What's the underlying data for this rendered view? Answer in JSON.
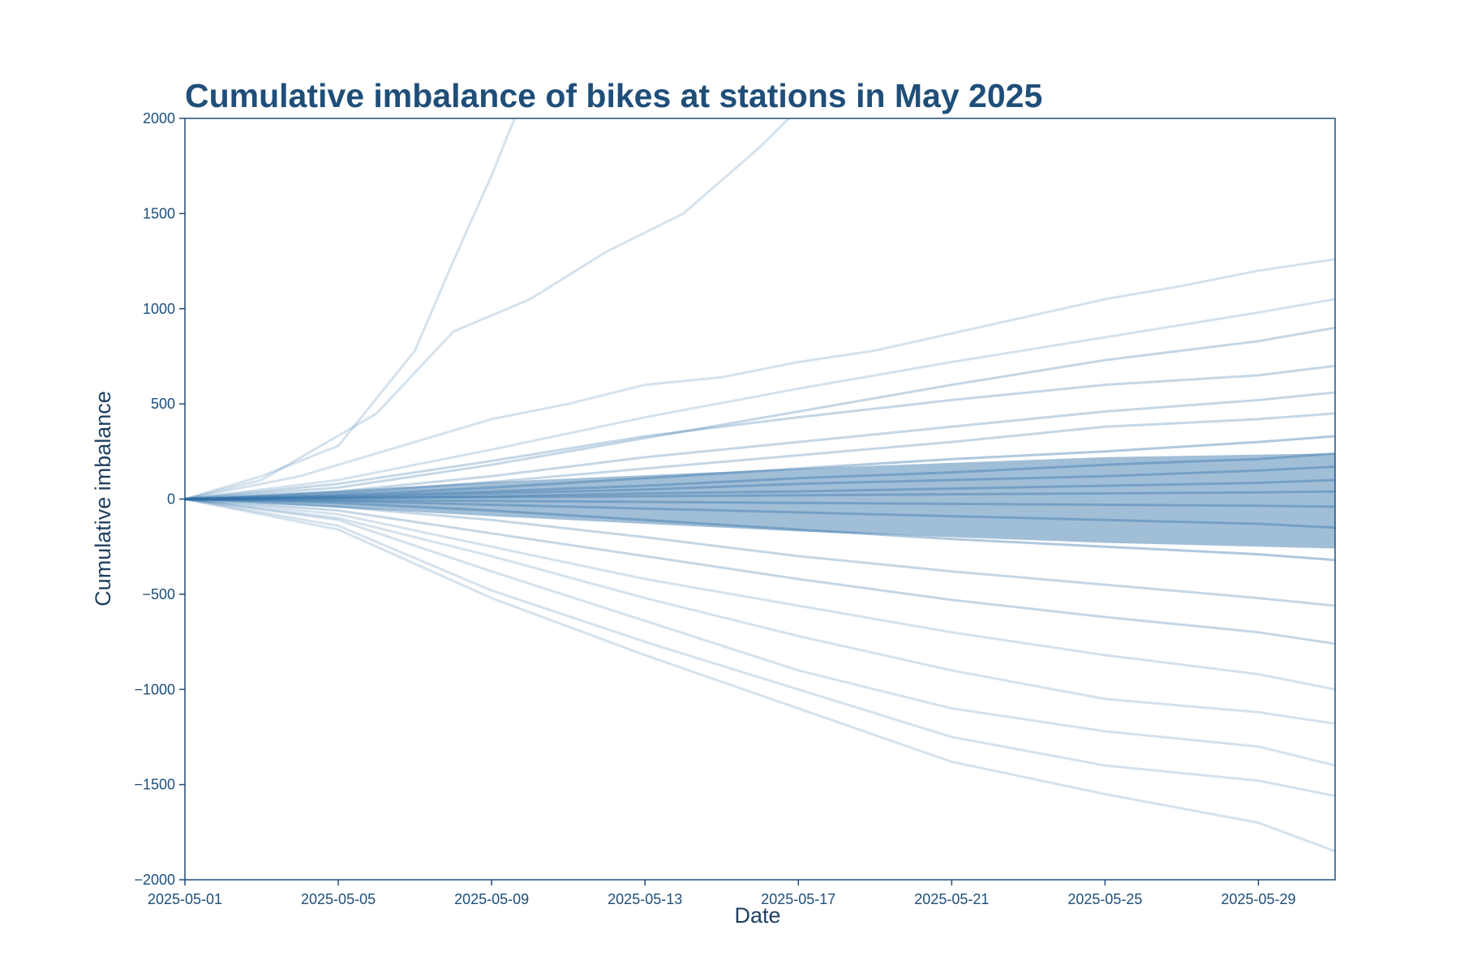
{
  "chart_data": {
    "type": "line",
    "title": "Cumulative imbalance of bikes at stations in May 2025",
    "xlabel": "Date",
    "ylabel": "Cumulative imbalance",
    "x_range": [
      "2025-05-01",
      "2025-05-31"
    ],
    "x_ticks": [
      "2025-05-01",
      "2025-05-05",
      "2025-05-09",
      "2025-05-13",
      "2025-05-17",
      "2025-05-21",
      "2025-05-25",
      "2025-05-29"
    ],
    "ylim": [
      -2000,
      2000
    ],
    "y_ticks": [
      -2000,
      -1500,
      -1000,
      -500,
      0,
      500,
      1000,
      1500,
      2000
    ],
    "y_tick_labels": [
      "−2000",
      "−1500",
      "−1000",
      "−500",
      "0",
      "500",
      "1000",
      "1500",
      "2000"
    ],
    "grid": false,
    "legend": "none",
    "colors": {
      "series": "#2f6ea6",
      "axes": "#1f4e79",
      "title": "#1f4e79"
    },
    "series": [
      {
        "x": [
          "2025-05-01",
          "2025-05-03",
          "2025-05-05",
          "2025-05-07",
          "2025-05-08",
          "2025-05-09",
          "2025-05-10"
        ],
        "values": [
          0,
          120,
          280,
          780,
          1250,
          1700,
          2200
        ]
      },
      {
        "x": [
          "2025-05-01",
          "2025-05-03",
          "2025-05-06",
          "2025-05-08",
          "2025-05-10",
          "2025-05-12",
          "2025-05-14",
          "2025-05-16",
          "2025-05-17"
        ],
        "values": [
          0,
          100,
          450,
          880,
          1050,
          1300,
          1500,
          1850,
          2050
        ]
      },
      {
        "x": [
          "2025-05-01",
          "2025-05-04",
          "2025-05-07",
          "2025-05-09",
          "2025-05-11",
          "2025-05-13",
          "2025-05-15",
          "2025-05-17",
          "2025-05-19",
          "2025-05-21",
          "2025-05-23",
          "2025-05-25",
          "2025-05-27",
          "2025-05-29",
          "2025-05-31"
        ],
        "values": [
          0,
          120,
          300,
          420,
          500,
          600,
          640,
          720,
          780,
          870,
          960,
          1050,
          1120,
          1200,
          1260
        ]
      },
      {
        "x": [
          "2025-05-01",
          "2025-05-05",
          "2025-05-09",
          "2025-05-13",
          "2025-05-17",
          "2025-05-21",
          "2025-05-25",
          "2025-05-29",
          "2025-05-31"
        ],
        "values": [
          0,
          100,
          260,
          430,
          580,
          720,
          850,
          980,
          1050
        ]
      },
      {
        "x": [
          "2025-05-01",
          "2025-05-05",
          "2025-05-09",
          "2025-05-13",
          "2025-05-17",
          "2025-05-21",
          "2025-05-25",
          "2025-05-29",
          "2025-05-31"
        ],
        "values": [
          0,
          60,
          180,
          320,
          460,
          600,
          730,
          830,
          900
        ]
      },
      {
        "x": [
          "2025-05-01",
          "2025-05-05",
          "2025-05-09",
          "2025-05-13",
          "2025-05-17",
          "2025-05-21",
          "2025-05-25",
          "2025-05-29",
          "2025-05-31"
        ],
        "values": [
          0,
          80,
          200,
          330,
          430,
          520,
          600,
          650,
          700
        ]
      },
      {
        "x": [
          "2025-05-01",
          "2025-05-05",
          "2025-05-09",
          "2025-05-13",
          "2025-05-17",
          "2025-05-21",
          "2025-05-25",
          "2025-05-29",
          "2025-05-31"
        ],
        "values": [
          0,
          40,
          120,
          220,
          300,
          380,
          460,
          520,
          560
        ]
      },
      {
        "x": [
          "2025-05-01",
          "2025-05-05",
          "2025-05-09",
          "2025-05-13",
          "2025-05-17",
          "2025-05-21",
          "2025-05-25",
          "2025-05-29",
          "2025-05-31"
        ],
        "values": [
          0,
          30,
          90,
          160,
          230,
          300,
          380,
          420,
          450
        ]
      },
      {
        "x": [
          "2025-05-01",
          "2025-05-05",
          "2025-05-09",
          "2025-05-13",
          "2025-05-17",
          "2025-05-21",
          "2025-05-25",
          "2025-05-29",
          "2025-05-31"
        ],
        "values": [
          0,
          20,
          60,
          110,
          160,
          210,
          250,
          300,
          330
        ]
      },
      {
        "x": [
          "2025-05-01",
          "2025-05-05",
          "2025-05-09",
          "2025-05-13",
          "2025-05-17",
          "2025-05-21",
          "2025-05-25",
          "2025-05-29",
          "2025-05-31"
        ],
        "values": [
          0,
          15,
          40,
          70,
          110,
          140,
          180,
          210,
          240
        ]
      },
      {
        "x": [
          "2025-05-01",
          "2025-05-05",
          "2025-05-09",
          "2025-05-13",
          "2025-05-17",
          "2025-05-21",
          "2025-05-25",
          "2025-05-29",
          "2025-05-31"
        ],
        "values": [
          0,
          10,
          30,
          50,
          80,
          100,
          120,
          150,
          170
        ]
      },
      {
        "x": [
          "2025-05-01",
          "2025-05-05",
          "2025-05-09",
          "2025-05-13",
          "2025-05-17",
          "2025-05-21",
          "2025-05-25",
          "2025-05-29",
          "2025-05-31"
        ],
        "values": [
          0,
          5,
          15,
          30,
          40,
          55,
          70,
          85,
          100
        ]
      },
      {
        "x": [
          "2025-05-01",
          "2025-05-05",
          "2025-05-09",
          "2025-05-13",
          "2025-05-17",
          "2025-05-21",
          "2025-05-25",
          "2025-05-29",
          "2025-05-31"
        ],
        "values": [
          0,
          5,
          10,
          15,
          20,
          25,
          30,
          35,
          40
        ]
      },
      {
        "x": [
          "2025-05-01",
          "2025-05-05",
          "2025-05-09",
          "2025-05-13",
          "2025-05-17",
          "2025-05-21",
          "2025-05-25",
          "2025-05-29",
          "2025-05-31"
        ],
        "values": [
          0,
          -5,
          -10,
          -15,
          -20,
          -25,
          -30,
          -35,
          -40
        ]
      },
      {
        "x": [
          "2025-05-01",
          "2025-05-05",
          "2025-05-09",
          "2025-05-13",
          "2025-05-17",
          "2025-05-21",
          "2025-05-25",
          "2025-05-29",
          "2025-05-31"
        ],
        "values": [
          0,
          -10,
          -30,
          -50,
          -70,
          -90,
          -110,
          -130,
          -150
        ]
      },
      {
        "x": [
          "2025-05-01",
          "2025-05-05",
          "2025-05-09",
          "2025-05-13",
          "2025-05-17",
          "2025-05-21",
          "2025-05-25",
          "2025-05-29",
          "2025-05-31"
        ],
        "values": [
          0,
          -20,
          -60,
          -110,
          -160,
          -210,
          -250,
          -290,
          -320
        ]
      },
      {
        "x": [
          "2025-05-01",
          "2025-05-05",
          "2025-05-09",
          "2025-05-13",
          "2025-05-17",
          "2025-05-21",
          "2025-05-25",
          "2025-05-29",
          "2025-05-31"
        ],
        "values": [
          0,
          -40,
          -110,
          -200,
          -300,
          -380,
          -450,
          -520,
          -560
        ]
      },
      {
        "x": [
          "2025-05-01",
          "2025-05-05",
          "2025-05-09",
          "2025-05-13",
          "2025-05-17",
          "2025-05-21",
          "2025-05-25",
          "2025-05-29",
          "2025-05-31"
        ],
        "values": [
          0,
          -60,
          -180,
          -300,
          -420,
          -530,
          -620,
          -700,
          -760
        ]
      },
      {
        "x": [
          "2025-05-01",
          "2025-05-05",
          "2025-05-09",
          "2025-05-13",
          "2025-05-17",
          "2025-05-21",
          "2025-05-25",
          "2025-05-29",
          "2025-05-31"
        ],
        "values": [
          0,
          -80,
          -250,
          -420,
          -560,
          -700,
          -820,
          -920,
          -1000
        ]
      },
      {
        "x": [
          "2025-05-01",
          "2025-05-05",
          "2025-05-09",
          "2025-05-13",
          "2025-05-17",
          "2025-05-21",
          "2025-05-25",
          "2025-05-29",
          "2025-05-31"
        ],
        "values": [
          0,
          -100,
          -300,
          -520,
          -720,
          -900,
          -1050,
          -1120,
          -1180
        ]
      },
      {
        "x": [
          "2025-05-01",
          "2025-05-05",
          "2025-05-09",
          "2025-05-13",
          "2025-05-17",
          "2025-05-21",
          "2025-05-25",
          "2025-05-29",
          "2025-05-31"
        ],
        "values": [
          0,
          -110,
          -380,
          -640,
          -900,
          -1100,
          -1220,
          -1300,
          -1400
        ]
      },
      {
        "x": [
          "2025-05-01",
          "2025-05-05",
          "2025-05-09",
          "2025-05-13",
          "2025-05-17",
          "2025-05-21",
          "2025-05-25",
          "2025-05-29",
          "2025-05-31"
        ],
        "values": [
          0,
          -140,
          -480,
          -750,
          -1000,
          -1250,
          -1400,
          -1480,
          -1560
        ]
      },
      {
        "x": [
          "2025-05-01",
          "2025-05-05",
          "2025-05-09",
          "2025-05-13",
          "2025-05-17",
          "2025-05-21",
          "2025-05-25",
          "2025-05-29",
          "2025-05-31"
        ],
        "values": [
          0,
          -160,
          -520,
          -820,
          -1100,
          -1380,
          -1550,
          -1700,
          -1850
        ]
      }
    ]
  }
}
